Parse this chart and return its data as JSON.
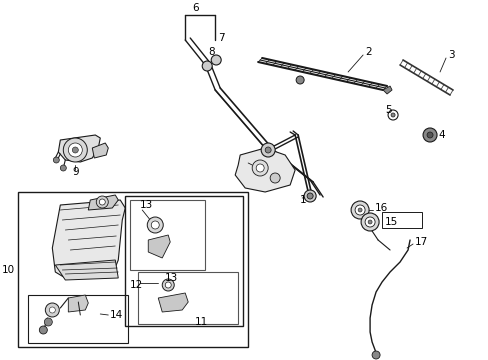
{
  "bg_color": "#ffffff",
  "fig_width": 4.89,
  "fig_height": 3.6,
  "dpi": 100,
  "lc": "#1a1a1a",
  "tc": "#000000",
  "fs": 7.5,
  "lw": 0.7
}
